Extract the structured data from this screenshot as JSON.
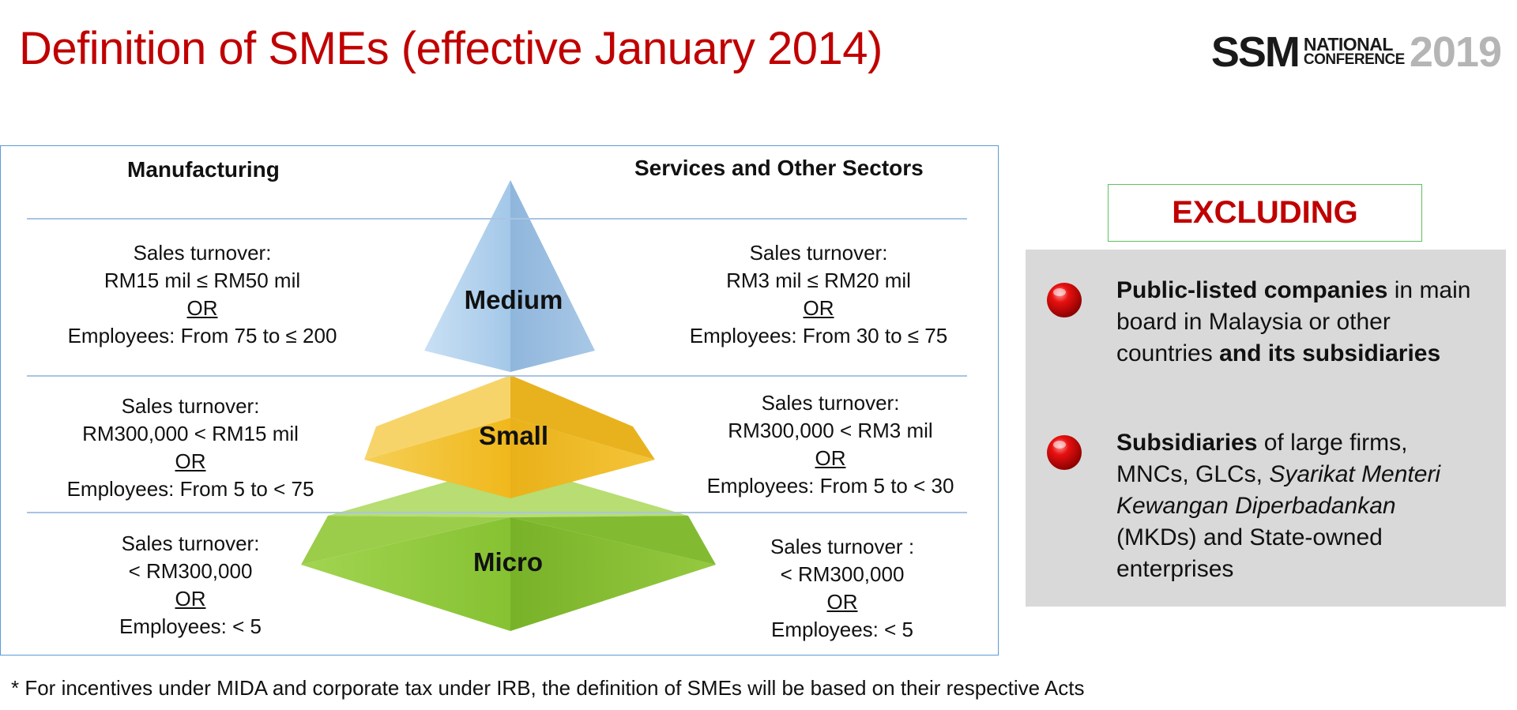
{
  "title": "Definition of SMEs (effective January 2014)",
  "logo": {
    "ssm": "SSM",
    "national": "NATIONAL",
    "conference": "CONFERENCE",
    "year": "2019"
  },
  "diagram": {
    "left_header": "Manufacturing",
    "right_header": "Services and Other Sectors",
    "tiers": [
      {
        "name": "Medium",
        "manufacturing": {
          "line1": "Sales turnover:",
          "line2": "RM15 mil ≤ RM50 mil",
          "or": "OR",
          "line3": "Employees: From 75 to ≤ 200"
        },
        "services": {
          "line1": "Sales turnover:",
          "line2": "RM3 mil ≤ RM20 mil",
          "or": "OR",
          "line3": "Employees: From 30 to ≤ 75"
        }
      },
      {
        "name": "Small",
        "manufacturing": {
          "line1": "Sales turnover:",
          "line2": "RM300,000 < RM15 mil",
          "or": "OR",
          "line3": "Employees: From 5 to < 75"
        },
        "services": {
          "line1": "Sales turnover:",
          "line2": "RM300,000 < RM3 mil",
          "or": "OR",
          "line3": "Employees: From 5 to < 30"
        }
      },
      {
        "name": "Micro",
        "manufacturing": {
          "line1": "Sales turnover:",
          "line2": "< RM300,000",
          "or": "OR",
          "line3": "Employees: < 5"
        },
        "services": {
          "line1": "Sales turnover :",
          "line2": "< RM300,000",
          "or": "OR",
          "line3": "Employees: < 5"
        }
      }
    ],
    "colors": {
      "medium": "#a9cbe8",
      "small": "#f2c12e",
      "micro": "#8dc63f"
    }
  },
  "excluding": {
    "heading": "EXCLUDING",
    "item1": {
      "b1": "Public-listed companies",
      "t1": " in main board in Malaysia or other countries ",
      "b2": "and its subsidiaries"
    },
    "item2": {
      "b1": "Subsidiaries",
      "t1": " of large firms, MNCs, GLCs, ",
      "i1": "Syarikat Menteri Kewangan Diperbadankan",
      "t2": " (MKDs) and State-owned enterprises"
    }
  },
  "footnote": "* For incentives under MIDA and corporate tax under IRB, the definition of SMEs will be based on their respective Acts"
}
